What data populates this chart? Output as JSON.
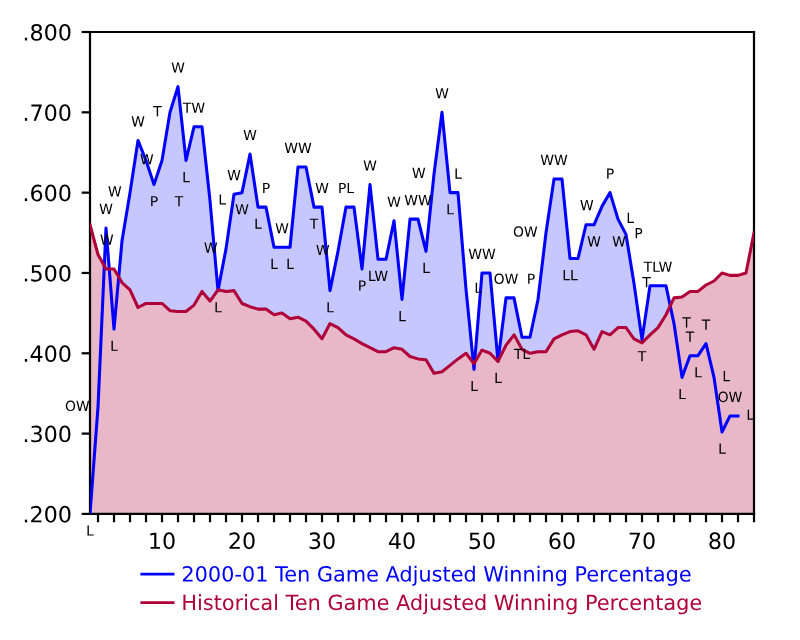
{
  "chart_data": {
    "type": "area",
    "x": [
      1,
      2,
      3,
      4,
      5,
      6,
      7,
      8,
      9,
      10,
      11,
      12,
      13,
      14,
      15,
      16,
      17,
      18,
      19,
      20,
      21,
      22,
      23,
      24,
      25,
      26,
      27,
      28,
      29,
      30,
      31,
      32,
      33,
      34,
      35,
      36,
      37,
      38,
      39,
      40,
      41,
      42,
      43,
      44,
      45,
      46,
      47,
      48,
      49,
      50,
      51,
      52,
      53,
      54,
      55,
      56,
      57,
      58,
      59,
      60,
      61,
      62,
      63,
      64,
      65,
      66,
      67,
      68,
      69,
      70,
      71,
      72,
      73,
      74,
      75,
      76,
      77,
      78,
      79,
      80,
      81,
      82,
      83,
      84
    ],
    "series": [
      {
        "name": "2000-01 Ten Game Adjusted Winning Percentage",
        "color": "#0000ff",
        "values": [
          0.2,
          0.333,
          0.556,
          0.43,
          0.54,
          0.6,
          0.665,
          0.64,
          0.61,
          0.64,
          0.7,
          0.732,
          0.64,
          0.682,
          0.682,
          0.59,
          0.478,
          0.53,
          0.598,
          0.6,
          0.648,
          0.582,
          0.582,
          0.532,
          0.532,
          0.532,
          0.632,
          0.632,
          0.582,
          0.582,
          0.478,
          0.527,
          0.582,
          0.582,
          0.505,
          0.61,
          0.517,
          0.517,
          0.565,
          0.467,
          0.567,
          0.567,
          0.527,
          0.623,
          0.7,
          0.6,
          0.6,
          0.48,
          0.38,
          0.5,
          0.5,
          0.39,
          0.469,
          0.469,
          0.42,
          0.42,
          0.467,
          0.55,
          0.617,
          0.617,
          0.518,
          0.518,
          0.56,
          0.56,
          0.583,
          0.6,
          0.567,
          0.548,
          0.487,
          0.417,
          0.484,
          0.484,
          0.484,
          0.437,
          0.37,
          0.397,
          0.397,
          0.412,
          0.37,
          0.302,
          0.322,
          0.322,
          null,
          null
        ]
      },
      {
        "name": "Historical Ten Game Adjusted Winning Percentage",
        "color": "#b0003a",
        "values": [
          0.56,
          0.523,
          0.505,
          0.505,
          0.488,
          0.479,
          0.457,
          0.462,
          0.462,
          0.462,
          0.453,
          0.452,
          0.452,
          0.46,
          0.477,
          0.465,
          0.479,
          0.477,
          0.478,
          0.462,
          0.458,
          0.455,
          0.455,
          0.448,
          0.45,
          0.443,
          0.445,
          0.44,
          0.43,
          0.418,
          0.437,
          0.432,
          0.423,
          0.418,
          0.412,
          0.407,
          0.402,
          0.402,
          0.407,
          0.405,
          0.396,
          0.393,
          0.392,
          0.375,
          0.377,
          0.385,
          0.393,
          0.4,
          0.387,
          0.404,
          0.4,
          0.39,
          0.41,
          0.423,
          0.405,
          0.4,
          0.402,
          0.402,
          0.418,
          0.423,
          0.427,
          0.428,
          0.423,
          0.405,
          0.427,
          0.423,
          0.432,
          0.432,
          0.418,
          0.413,
          0.423,
          0.432,
          0.448,
          0.469,
          0.47,
          0.477,
          0.477,
          0.485,
          0.49,
          0.5,
          0.497,
          0.497,
          0.5,
          0.55
        ]
      }
    ],
    "xlim": [
      1,
      84
    ],
    "ylim": [
      0.2,
      0.8
    ],
    "xticks": [
      {
        "value": 2,
        "label": null
      },
      {
        "value": 4,
        "label": null
      },
      {
        "value": 6,
        "label": null
      },
      {
        "value": 8,
        "label": null
      },
      10,
      {
        "value": 12,
        "label": null
      },
      {
        "value": 14,
        "label": null
      },
      {
        "value": 16,
        "label": null
      },
      {
        "value": 18,
        "label": null
      },
      20,
      {
        "value": 22,
        "label": null
      },
      {
        "value": 24,
        "label": null
      },
      {
        "value": 26,
        "label": null
      },
      {
        "value": 28,
        "label": null
      },
      30,
      {
        "value": 32,
        "label": null
      },
      {
        "value": 34,
        "label": null
      },
      {
        "value": 36,
        "label": null
      },
      {
        "value": 38,
        "label": null
      },
      40,
      {
        "value": 42,
        "label": null
      },
      {
        "value": 44,
        "label": null
      },
      {
        "value": 46,
        "label": null
      },
      {
        "value": 48,
        "label": null
      },
      50,
      {
        "value": 52,
        "label": null
      },
      {
        "value": 54,
        "label": null
      },
      {
        "value": 56,
        "label": null
      },
      {
        "value": 58,
        "label": null
      },
      60,
      {
        "value": 62,
        "label": null
      },
      {
        "value": 64,
        "label": null
      },
      {
        "value": 66,
        "label": null
      },
      {
        "value": 68,
        "label": null
      },
      70,
      {
        "value": 72,
        "label": null
      },
      {
        "value": 74,
        "label": null
      },
      {
        "value": 76,
        "label": null
      },
      {
        "value": 78,
        "label": null
      },
      80,
      {
        "value": 82,
        "label": null
      },
      {
        "value": 84,
        "label": null
      }
    ],
    "yticks": [
      {
        "value": 0.2,
        "label": ".200"
      },
      {
        "value": 0.3,
        "label": ".300"
      },
      {
        "value": 0.4,
        "label": ".400"
      },
      {
        "value": 0.5,
        "label": ".500"
      },
      {
        "value": 0.6,
        "label": ".600"
      },
      {
        "value": 0.7,
        "label": ".700"
      },
      {
        "value": 0.8,
        "label": ".800"
      }
    ],
    "grid": false,
    "legend": "bottom",
    "annotations": [
      {
        "text": "L",
        "x": 1,
        "y": 0.2
      },
      {
        "text": "W",
        "x": 3,
        "y": 0.556
      },
      {
        "text": "W",
        "x": 5,
        "y": 0.54
      },
      {
        "text": "L",
        "x": 4,
        "y": 0.43
      },
      {
        "text": "OW",
        "x": 2,
        "y": 0.333
      },
      {
        "text": "W",
        "x": 6,
        "y": 0.6
      },
      {
        "text": "W",
        "x": 7,
        "y": 0.665
      },
      {
        "text": "P",
        "x": 9,
        "y": 0.61
      },
      {
        "text": "T",
        "x": 9,
        "y": 0.61
      },
      {
        "text": "W",
        "x": 10,
        "y": 0.64
      },
      {
        "text": "T",
        "x": 11,
        "y": 0.7
      },
      {
        "text": "W",
        "x": 12,
        "y": 0.732
      },
      {
        "text": "L",
        "x": 13,
        "y": 0.64
      },
      {
        "text": "TW",
        "x": 14,
        "y": 0.682
      },
      {
        "text": "L",
        "x": 16,
        "y": 0.59
      },
      {
        "text": "L",
        "x": 17,
        "y": 0.478
      },
      {
        "text": "W",
        "x": 18,
        "y": 0.53
      },
      {
        "text": "W",
        "x": 19,
        "y": 0.598
      },
      {
        "text": "W",
        "x": 20,
        "y": 0.6
      },
      {
        "text": "W",
        "x": 21,
        "y": 0.648
      },
      {
        "text": "L",
        "x": 22,
        "y": 0.582
      },
      {
        "text": "P",
        "x": 23,
        "y": 0.582
      },
      {
        "text": "L",
        "x": 24,
        "y": 0.532
      },
      {
        "text": "W",
        "x": 25,
        "y": 0.532
      },
      {
        "text": "L",
        "x": 26,
        "y": 0.532
      },
      {
        "text": "WW",
        "x": 27,
        "y": 0.632
      },
      {
        "text": "T",
        "x": 29,
        "y": 0.582
      },
      {
        "text": "W",
        "x": 30,
        "y": 0.582
      },
      {
        "text": "L",
        "x": 31,
        "y": 0.478
      },
      {
        "text": "W",
        "x": 32,
        "y": 0.527
      },
      {
        "text": "PL",
        "x": 33,
        "y": 0.582
      },
      {
        "text": "P",
        "x": 35,
        "y": 0.505
      },
      {
        "text": "W",
        "x": 36,
        "y": 0.61
      },
      {
        "text": "LW",
        "x": 37,
        "y": 0.517
      },
      {
        "text": "W",
        "x": 39,
        "y": 0.565
      },
      {
        "text": "L",
        "x": 40,
        "y": 0.467
      },
      {
        "text": "WW",
        "x": 42,
        "y": 0.567
      },
      {
        "text": "L",
        "x": 43,
        "y": 0.527
      },
      {
        "text": "W",
        "x": 44,
        "y": 0.623
      },
      {
        "text": "W",
        "x": 45,
        "y": 0.7
      },
      {
        "text": "L",
        "x": 46,
        "y": 0.6
      },
      {
        "text": "L",
        "x": 47,
        "y": 0.6
      },
      {
        "text": "L",
        "x": 48,
        "y": 0.48
      },
      {
        "text": "L",
        "x": 49,
        "y": 0.38
      },
      {
        "text": "WW",
        "x": 50,
        "y": 0.5
      },
      {
        "text": "L",
        "x": 52,
        "y": 0.39
      },
      {
        "text": "OW",
        "x": 53,
        "y": 0.469
      },
      {
        "text": "P",
        "x": 53,
        "y": 0.469
      },
      {
        "text": "TL",
        "x": 55,
        "y": 0.42
      },
      {
        "text": "OW",
        "x": 58,
        "y": 0.55
      },
      {
        "text": "WW",
        "x": 59,
        "y": 0.617
      },
      {
        "text": "LL",
        "x": 61,
        "y": 0.518
      },
      {
        "text": "W",
        "x": 64,
        "y": 0.56
      },
      {
        "text": "W",
        "x": 65,
        "y": 0.583
      },
      {
        "text": "W",
        "x": 64,
        "y": 0.56
      },
      {
        "text": "P",
        "x": 66,
        "y": 0.6
      },
      {
        "text": "L",
        "x": 67,
        "y": 0.567
      },
      {
        "text": "P",
        "x": 68,
        "y": 0.548
      },
      {
        "text": "T",
        "x": 69,
        "y": 0.487
      },
      {
        "text": "TLW",
        "x": 72,
        "y": 0.484
      },
      {
        "text": "T",
        "x": 70,
        "y": 0.417
      },
      {
        "text": "T",
        "x": 74,
        "y": 0.437
      },
      {
        "text": "L",
        "x": 75,
        "y": 0.37
      },
      {
        "text": "T",
        "x": 76,
        "y": 0.397
      },
      {
        "text": "L",
        "x": 77,
        "y": 0.397
      },
      {
        "text": "T",
        "x": 78,
        "y": 0.412
      },
      {
        "text": "L",
        "x": 79,
        "y": 0.37
      },
      {
        "text": "OW",
        "x": 81,
        "y": 0.322
      },
      {
        "text": "L",
        "x": 82,
        "y": 0.322
      },
      {
        "text": "L",
        "x": 80,
        "y": 0.302
      }
    ]
  }
}
